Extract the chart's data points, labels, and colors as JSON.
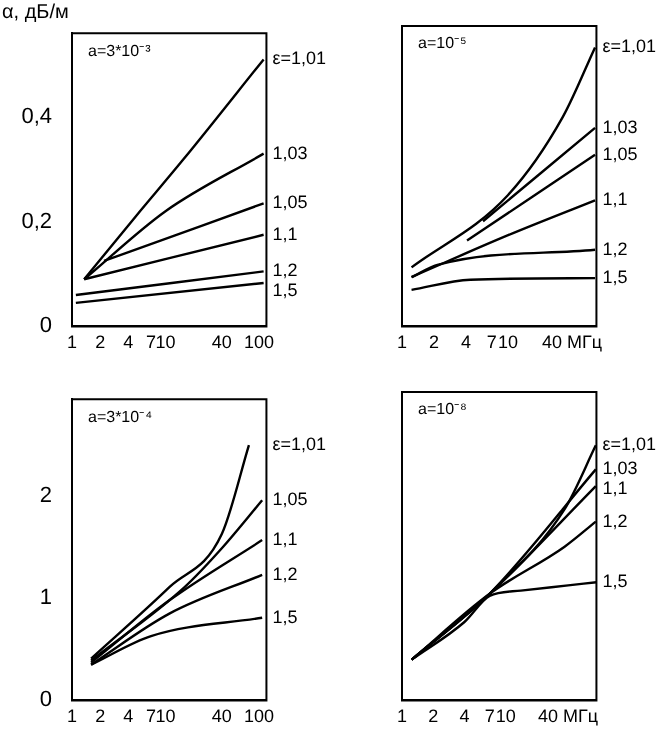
{
  "chart_data": [
    {
      "type": "line",
      "ylabel": "α, дБ/м",
      "annotations": [
        "a=3*10⁻³"
      ],
      "log": "x",
      "xlim": [
        1,
        120
      ],
      "xticks": [
        1,
        2,
        4,
        7,
        10,
        40,
        100
      ],
      "ylim": [
        0,
        0.56
      ],
      "yticks": [
        0,
        {
          "value": 0.2,
          "label": "0,2"
        },
        {
          "value": 0.4,
          "label": "0,4"
        }
      ],
      "series": [
        {
          "name": "ε=1,01",
          "color": "#000000",
          "x": [
            1.35,
            4.8,
            15.7,
            112
          ],
          "values": [
            0.09,
            0.21,
            0.32,
            0.51
          ]
        },
        {
          "name": "1,03",
          "color": "#000000",
          "x": [
            1.35,
            10,
            112
          ],
          "values": [
            0.09,
            0.22,
            0.33
          ]
        },
        {
          "name": "1,05",
          "color": "#000000",
          "x": [
            2.2,
            112
          ],
          "values": [
            0.125,
            0.235
          ]
        },
        {
          "name": "1,1",
          "color": "#000000",
          "x": [
            1.35,
            112
          ],
          "values": [
            0.09,
            0.175
          ]
        },
        {
          "name": "1,2",
          "color": "#000000",
          "x": [
            1.1,
            112
          ],
          "values": [
            0.06,
            0.105
          ]
        },
        {
          "name": "1,5",
          "color": "#000000",
          "x": [
            1.1,
            112
          ],
          "values": [
            0.045,
            0.083
          ]
        }
      ]
    },
    {
      "type": "line",
      "annotations": [
        "a=10⁻⁵"
      ],
      "log": "x",
      "tick_labels": "x",
      "xlim": [
        1,
        68
      ],
      "xticks": [
        1,
        2,
        4,
        7,
        10,
        {
          "value": 40,
          "label": "40 МГц"
        }
      ],
      "ylim": [
        0,
        0.56
      ],
      "yticks": [
        0,
        0.2,
        0.4
      ],
      "series": [
        {
          "name": "ε=1,01",
          "color": "#000000",
          "x": [
            1.23,
            10,
            32.7,
            66
          ],
          "values": [
            0.11,
            0.245,
            0.39,
            0.52
          ]
        },
        {
          "name": "1,03",
          "color": "#000000",
          "x": [
            5.8,
            66
          ],
          "values": [
            0.196,
            0.37
          ]
        },
        {
          "name": "1,05",
          "color": "#000000",
          "x": [
            4.1,
            66
          ],
          "values": [
            0.16,
            0.32
          ]
        },
        {
          "name": "1,1",
          "color": "#000000",
          "x": [
            1.23,
            10,
            66
          ],
          "values": [
            0.092,
            0.17,
            0.235
          ]
        },
        {
          "name": "1,2",
          "color": "#000000",
          "x": [
            1.23,
            2.2,
            66
          ],
          "values": [
            0.092,
            0.115,
            0.143
          ]
        },
        {
          "name": "1,5",
          "color": "#000000",
          "x": [
            1.23,
            4.4,
            66
          ],
          "values": [
            0.068,
            0.087,
            0.09
          ]
        }
      ]
    },
    {
      "type": "line",
      "annotations": [
        "a=3*10⁻⁴"
      ],
      "log": "x",
      "xlim": [
        1,
        120
      ],
      "xticks": [
        1,
        2,
        4,
        7,
        10,
        40,
        100
      ],
      "ylim": [
        0,
        2.95
      ],
      "yticks": [
        0,
        1,
        2
      ],
      "series": [
        {
          "name": "ε=1,01",
          "color": "#000000",
          "x": [
            1.6,
            11,
            40,
            78
          ],
          "values": [
            0.41,
            1.11,
            1.63,
            2.5
          ]
        },
        {
          "name": "1,05",
          "color": "#000000",
          "x": [
            1.6,
            16,
            40,
            108
          ],
          "values": [
            0.39,
            1.11,
            1.49,
            1.96
          ]
        },
        {
          "name": "1,1",
          "color": "#000000",
          "x": [
            1.6,
            11,
            108
          ],
          "values": [
            0.37,
            0.98,
            1.57
          ]
        },
        {
          "name": "1,2",
          "color": "#000000",
          "x": [
            1.6,
            11,
            108
          ],
          "values": [
            0.35,
            0.85,
            1.23
          ]
        },
        {
          "name": "1,5",
          "color": "#000000",
          "x": [
            1.6,
            7,
            108
          ],
          "values": [
            0.35,
            0.63,
            0.81
          ]
        }
      ]
    },
    {
      "type": "line",
      "annotations": [
        "a=10⁻⁸"
      ],
      "log": "x",
      "tick_labels": "x",
      "xlim": [
        1,
        75
      ],
      "xticks": [
        1,
        2,
        4,
        7,
        10,
        {
          "value": 40,
          "label": "40 МГц"
        }
      ],
      "ylim": [
        0,
        2.95
      ],
      "yticks": [
        0,
        1,
        2
      ],
      "series": [
        {
          "name": "ε=1,01",
          "color": "#000000",
          "x": [
            1.24,
            7,
            37,
            74
          ],
          "values": [
            0.39,
            1.02,
            1.83,
            2.44
          ]
        },
        {
          "name": "1,03",
          "color": "#000000",
          "x": [
            1.24,
            7,
            74
          ],
          "values": [
            0.39,
            1.02,
            2.21
          ]
        },
        {
          "name": "1,1",
          "color": "#000000",
          "x": [
            1.24,
            7,
            74
          ],
          "values": [
            0.39,
            1.02,
            2.05
          ]
        },
        {
          "name": "1,2",
          "color": "#000000",
          "x": [
            1.24,
            7,
            37,
            74
          ],
          "values": [
            0.39,
            1.02,
            1.47,
            1.71
          ]
        },
        {
          "name": "1,5",
          "color": "#000000",
          "x": [
            1.24,
            4,
            7,
            14,
            40,
            75
          ],
          "values": [
            0.39,
            0.75,
            1.0,
            1.05,
            1.1,
            1.13
          ]
        }
      ]
    }
  ]
}
